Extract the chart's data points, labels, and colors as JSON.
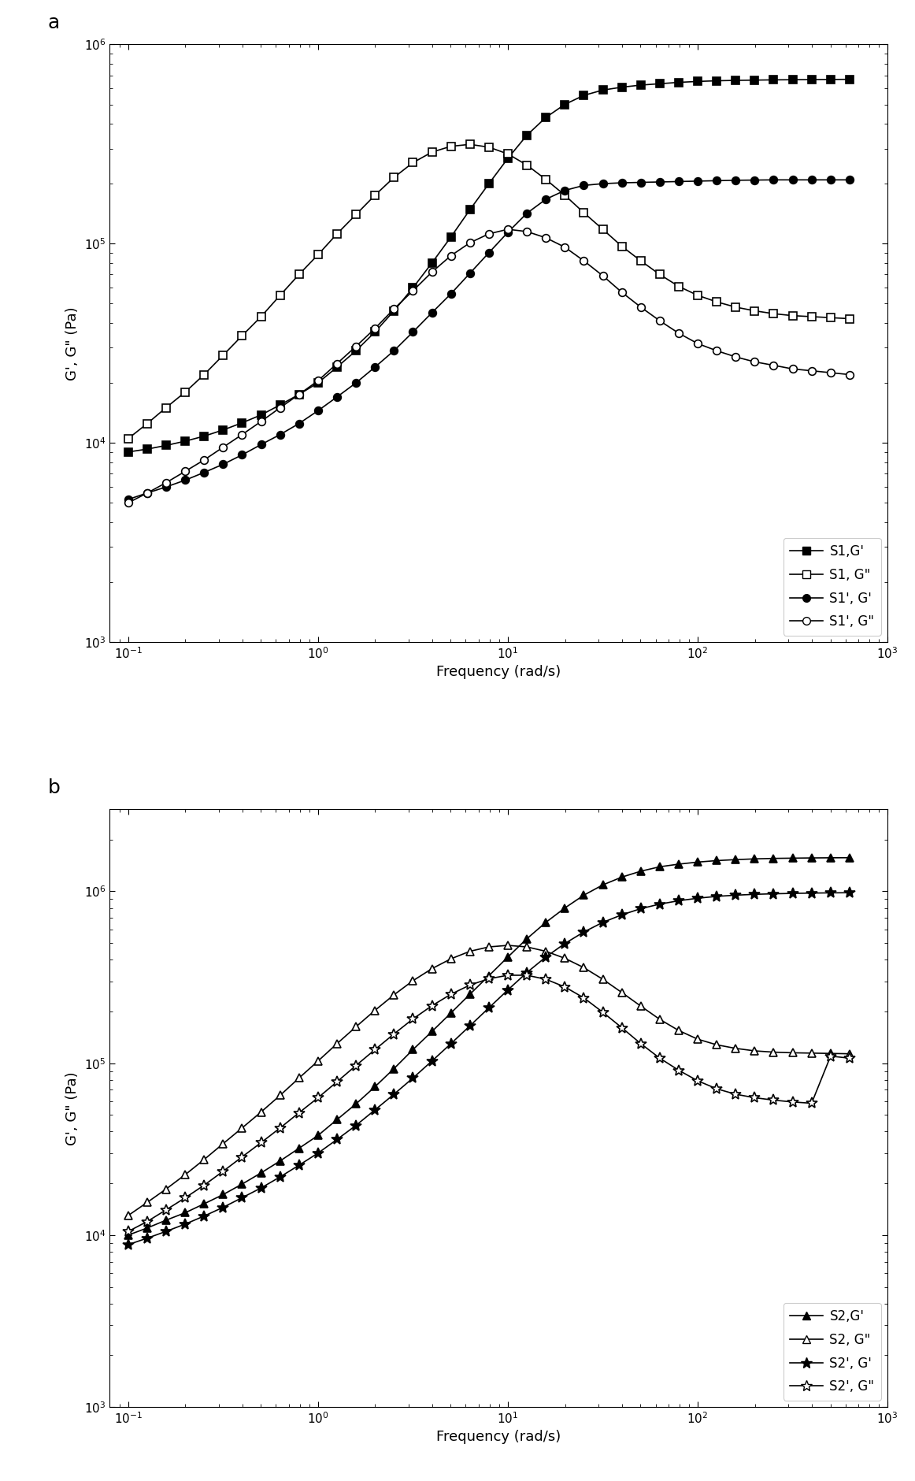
{
  "panel_a": {
    "S1_Gprime": {
      "freq": [
        0.1,
        0.126,
        0.158,
        0.2,
        0.251,
        0.316,
        0.398,
        0.501,
        0.631,
        0.794,
        1.0,
        1.259,
        1.585,
        1.995,
        2.512,
        3.162,
        3.981,
        5.012,
        6.31,
        7.943,
        10.0,
        12.59,
        15.85,
        19.95,
        25.12,
        31.62,
        39.81,
        50.12,
        63.1,
        79.43,
        100.0,
        125.9,
        158.5,
        199.5,
        251.2,
        316.2,
        398.1,
        501.2,
        630.9
      ],
      "val": [
        9000,
        9300,
        9700,
        10200,
        10800,
        11600,
        12600,
        13800,
        15500,
        17500,
        20000,
        24000,
        29000,
        36000,
        46000,
        60000,
        80000,
        108000,
        148000,
        200000,
        268000,
        350000,
        430000,
        500000,
        555000,
        590000,
        610000,
        625000,
        635000,
        645000,
        652000,
        657000,
        660000,
        662000,
        664000,
        665000,
        666000,
        667000,
        668000
      ]
    },
    "S1_Gdprime": {
      "freq": [
        0.1,
        0.126,
        0.158,
        0.2,
        0.251,
        0.316,
        0.398,
        0.501,
        0.631,
        0.794,
        1.0,
        1.259,
        1.585,
        1.995,
        2.512,
        3.162,
        3.981,
        5.012,
        6.31,
        7.943,
        10.0,
        12.59,
        15.85,
        19.95,
        25.12,
        31.62,
        39.81,
        50.12,
        63.1,
        79.43,
        100.0,
        125.9,
        158.5,
        199.5,
        251.2,
        316.2,
        398.1,
        501.2,
        630.9
      ],
      "val": [
        10500,
        12500,
        15000,
        18000,
        22000,
        27500,
        34500,
        43000,
        55000,
        70000,
        88000,
        112000,
        140000,
        175000,
        215000,
        255000,
        288000,
        308000,
        315000,
        305000,
        282000,
        248000,
        210000,
        175000,
        143000,
        118000,
        97000,
        82000,
        70000,
        61000,
        55000,
        51000,
        48000,
        46000,
        44500,
        43500,
        43000,
        42500,
        42000
      ]
    },
    "S1p_Gprime": {
      "freq": [
        0.1,
        0.126,
        0.158,
        0.2,
        0.251,
        0.316,
        0.398,
        0.501,
        0.631,
        0.794,
        1.0,
        1.259,
        1.585,
        1.995,
        2.512,
        3.162,
        3.981,
        5.012,
        6.31,
        7.943,
        10.0,
        12.59,
        15.85,
        19.95,
        25.12,
        31.62,
        39.81,
        50.12,
        63.1,
        79.43,
        100.0,
        125.9,
        158.5,
        199.5,
        251.2,
        316.2,
        398.1,
        501.2,
        630.9
      ],
      "val": [
        5200,
        5600,
        6000,
        6500,
        7100,
        7800,
        8700,
        9800,
        11000,
        12500,
        14500,
        17000,
        20000,
        24000,
        29000,
        36000,
        45000,
        56000,
        71000,
        90000,
        114000,
        142000,
        167000,
        185000,
        196000,
        200000,
        202000,
        203000,
        204000,
        205000,
        206000,
        207000,
        208000,
        208500,
        209000,
        209000,
        209000,
        209000,
        209000
      ]
    },
    "S1p_Gdprime": {
      "freq": [
        0.1,
        0.126,
        0.158,
        0.2,
        0.251,
        0.316,
        0.398,
        0.501,
        0.631,
        0.794,
        1.0,
        1.259,
        1.585,
        1.995,
        2.512,
        3.162,
        3.981,
        5.012,
        6.31,
        7.943,
        10.0,
        12.59,
        15.85,
        19.95,
        25.12,
        31.62,
        39.81,
        50.12,
        63.1,
        79.43,
        100.0,
        125.9,
        158.5,
        199.5,
        251.2,
        316.2,
        398.1,
        501.2,
        630.9
      ],
      "val": [
        5000,
        5600,
        6300,
        7200,
        8200,
        9500,
        11000,
        12800,
        15000,
        17500,
        20500,
        25000,
        30500,
        37500,
        47000,
        58000,
        72000,
        87000,
        101000,
        112000,
        118000,
        115000,
        107000,
        96000,
        82000,
        69000,
        57000,
        48000,
        41000,
        35500,
        31500,
        29000,
        27000,
        25500,
        24500,
        23500,
        23000,
        22500,
        22000
      ]
    }
  },
  "panel_b": {
    "S2_Gprime": {
      "freq": [
        0.1,
        0.126,
        0.158,
        0.2,
        0.251,
        0.316,
        0.398,
        0.501,
        0.631,
        0.794,
        1.0,
        1.259,
        1.585,
        1.995,
        2.512,
        3.162,
        3.981,
        5.012,
        6.31,
        7.943,
        10.0,
        12.59,
        15.85,
        19.95,
        25.12,
        31.62,
        39.81,
        50.12,
        63.1,
        79.43,
        100.0,
        125.9,
        158.5,
        199.5,
        251.2,
        316.2,
        398.1,
        501.2,
        630.9
      ],
      "val": [
        10000,
        11000,
        12200,
        13500,
        15200,
        17200,
        19800,
        23000,
        27000,
        32000,
        38000,
        47000,
        58000,
        73000,
        93000,
        120000,
        153000,
        196000,
        252000,
        323000,
        415000,
        530000,
        660000,
        800000,
        950000,
        1090000,
        1210000,
        1310000,
        1390000,
        1440000,
        1480000,
        1510000,
        1530000,
        1545000,
        1555000,
        1560000,
        1565000,
        1568000,
        1570000
      ]
    },
    "S2_Gdprime": {
      "freq": [
        0.1,
        0.126,
        0.158,
        0.2,
        0.251,
        0.316,
        0.398,
        0.501,
        0.631,
        0.794,
        1.0,
        1.259,
        1.585,
        1.995,
        2.512,
        3.162,
        3.981,
        5.012,
        6.31,
        7.943,
        10.0,
        12.59,
        15.85,
        19.95,
        25.12,
        31.62,
        39.81,
        50.12,
        63.1,
        79.43,
        100.0,
        125.9,
        158.5,
        199.5,
        251.2,
        316.2,
        398.1,
        501.2,
        630.9
      ],
      "val": [
        13000,
        15500,
        18500,
        22500,
        27500,
        34000,
        42000,
        52000,
        65000,
        82000,
        103000,
        130000,
        163000,
        203000,
        250000,
        302000,
        355000,
        405000,
        448000,
        475000,
        485000,
        475000,
        448000,
        408000,
        360000,
        308000,
        258000,
        215000,
        180000,
        155000,
        138000,
        128000,
        122000,
        118000,
        116000,
        115000,
        114500,
        114000,
        113500
      ]
    },
    "S2p_Gprime": {
      "freq": [
        0.1,
        0.126,
        0.158,
        0.2,
        0.251,
        0.316,
        0.398,
        0.501,
        0.631,
        0.794,
        1.0,
        1.259,
        1.585,
        1.995,
        2.512,
        3.162,
        3.981,
        5.012,
        6.31,
        7.943,
        10.0,
        12.59,
        15.85,
        19.95,
        25.12,
        31.62,
        39.81,
        50.12,
        63.1,
        79.43,
        100.0,
        125.9,
        158.5,
        199.5,
        251.2,
        316.2,
        398.1,
        501.2,
        630.9
      ],
      "val": [
        8800,
        9600,
        10500,
        11600,
        12900,
        14500,
        16500,
        18800,
        21800,
        25500,
        30000,
        36000,
        43500,
        53500,
        66000,
        82000,
        103000,
        130000,
        165000,
        210000,
        267000,
        337000,
        415000,
        497000,
        580000,
        660000,
        730000,
        793000,
        843000,
        882000,
        912000,
        935000,
        950000,
        961000,
        968000,
        973000,
        977000,
        980000,
        982000
      ]
    },
    "S2p_Gdprime": {
      "freq": [
        0.1,
        0.126,
        0.158,
        0.2,
        0.251,
        0.316,
        0.398,
        0.501,
        0.631,
        0.794,
        1.0,
        1.259,
        1.585,
        1.995,
        2.512,
        3.162,
        3.981,
        5.012,
        6.31,
        7.943,
        10.0,
        12.59,
        15.85,
        19.95,
        25.12,
        31.62,
        39.81,
        50.12,
        63.1,
        79.43,
        100.0,
        125.9,
        158.5,
        199.5,
        251.2,
        316.2,
        398.1,
        501.2,
        630.9
      ],
      "val": [
        10500,
        12000,
        14000,
        16500,
        19500,
        23500,
        28500,
        34500,
        42000,
        51500,
        63000,
        78000,
        97000,
        120000,
        148000,
        181000,
        216000,
        252000,
        285000,
        310000,
        325000,
        325000,
        308000,
        278000,
        240000,
        198000,
        161000,
        130000,
        107000,
        91000,
        79000,
        71000,
        66000,
        63000,
        61000,
        59500,
        58500,
        110000,
        107000
      ]
    }
  },
  "xlim": [
    0.08,
    1000
  ],
  "ylim_a": [
    1000,
    1000000
  ],
  "ylim_b": [
    1000,
    3000000
  ],
  "xlabel": "Frequency (rad/s)",
  "ylabel": "G', G\" (Pa)",
  "color": "black",
  "markersize": 7,
  "star_markersize": 10,
  "linewidth": 1.2,
  "legend_a_loc": "lower right",
  "legend_b_loc": "lower right"
}
